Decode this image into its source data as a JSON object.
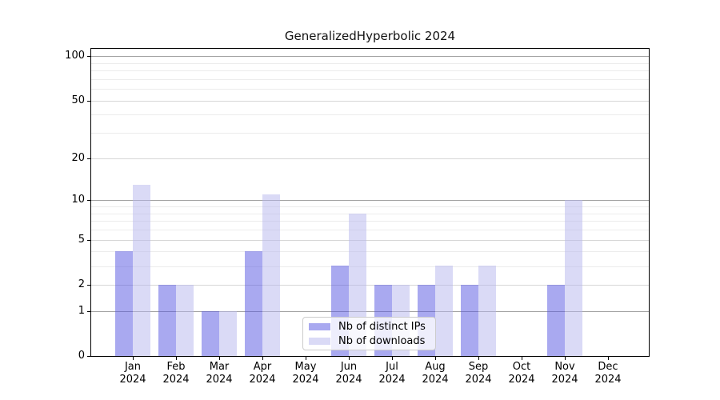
{
  "chart_data": {
    "type": "bar",
    "title": "GeneralizedHyperbolic 2024",
    "categories": [
      "Jan 2024",
      "Feb 2024",
      "Mar 2024",
      "Apr 2024",
      "May 2024",
      "Jun 2024",
      "Jul 2024",
      "Aug 2024",
      "Sep 2024",
      "Oct 2024",
      "Nov 2024",
      "Dec 2024"
    ],
    "series": [
      {
        "name": "Nb of distinct IPs",
        "values": [
          4,
          2,
          1,
          4,
          0,
          3,
          2,
          2,
          2,
          0,
          2,
          0
        ],
        "color": "rgba(83,83,225,0.5)"
      },
      {
        "name": "Nb of downloads",
        "values": [
          13,
          2,
          1,
          11,
          0,
          8,
          2,
          3,
          3,
          0,
          10,
          0
        ],
        "color": "rgba(182,182,238,0.5)"
      }
    ],
    "xlabel": "",
    "ylabel": "",
    "yscale": "log1p",
    "ylim": [
      0,
      113
    ],
    "yticks": [
      0,
      1,
      2,
      5,
      10,
      20,
      50,
      100
    ],
    "yticks_minor": [
      3,
      4,
      6,
      7,
      8,
      9,
      30,
      40,
      60,
      70,
      80,
      90
    ],
    "grid": "both",
    "legend_position": "lower center"
  }
}
